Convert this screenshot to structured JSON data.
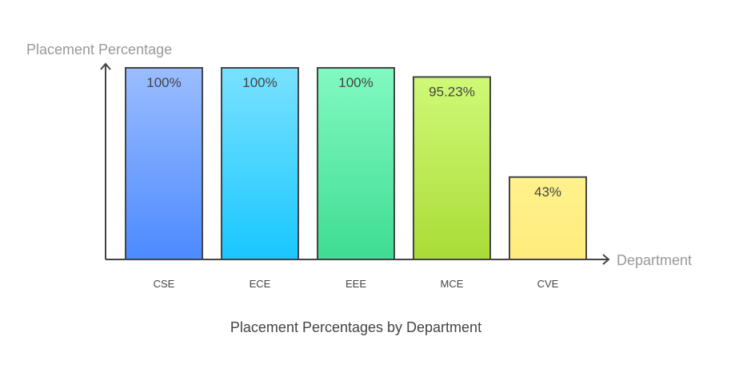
{
  "chart_data": {
    "type": "bar",
    "title": "Placement Percentages by Department",
    "xlabel": "Department",
    "ylabel": "Placement Percentage",
    "categories": [
      "CSE",
      "ECE",
      "EEE",
      "MCE",
      "CVE"
    ],
    "values": [
      100,
      100,
      100,
      95.23,
      43
    ],
    "data_labels": [
      "100%",
      "100%",
      "100%",
      "95.23%",
      "43%"
    ],
    "ylim": [
      0,
      100
    ],
    "grid": false,
    "colors": [
      [
        "#9bbdff",
        "#4c8aff"
      ],
      [
        "#7ae1ff",
        "#19c7ff"
      ],
      [
        "#82f9c1",
        "#3fdc93"
      ],
      [
        "#cff977",
        "#a9dc37"
      ],
      [
        "#fff18c",
        "#ffec7d"
      ]
    ]
  }
}
